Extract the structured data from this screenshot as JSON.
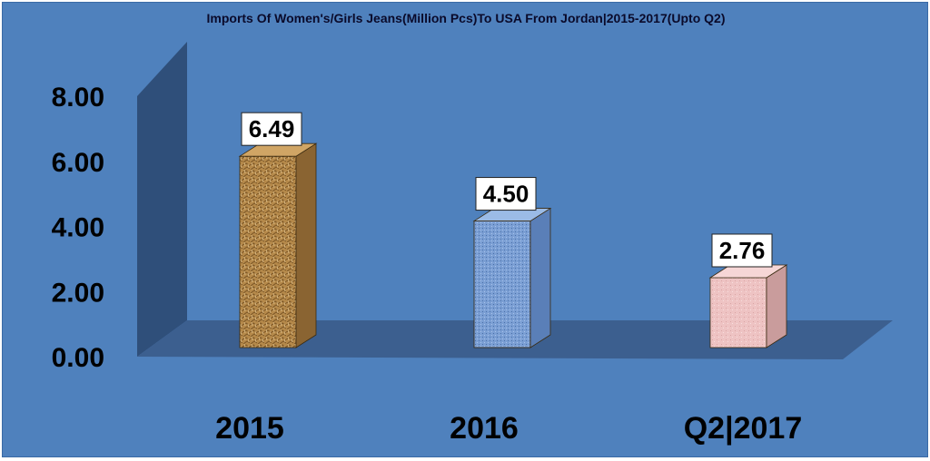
{
  "chart_data": {
    "type": "bar",
    "title": "Imports Of Women's/Girls Jeans(Million Pcs)To USA From Jordan|2015-2017(Upto Q2)",
    "categories": [
      "2015",
      "2016",
      "Q2|2017"
    ],
    "values": [
      6.49,
      4.5,
      2.76
    ],
    "data_labels": [
      "6.49",
      "4.50",
      "2.76"
    ],
    "y_ticks": [
      "0.00",
      "2.00",
      "4.00",
      "6.00",
      "8.00"
    ],
    "ylim": [
      0,
      8
    ],
    "xlabel": "",
    "ylabel": "",
    "three_d": true,
    "grid": false,
    "legend": "none",
    "colors": {
      "background": "#4f81bd",
      "walls": "#2f4f7a",
      "bar_2015": "#b5894a",
      "bar_2016": "#7b9fd4",
      "bar_2017": "#eec3c3",
      "label_box": "#ffffff"
    }
  }
}
